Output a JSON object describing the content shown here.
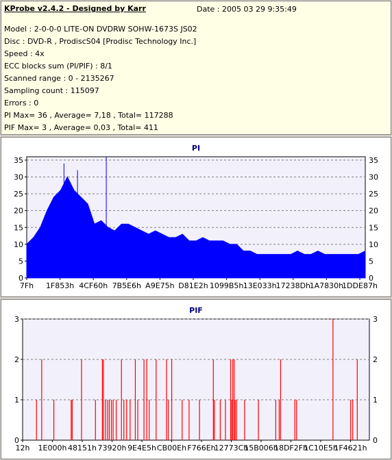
{
  "header": {
    "title": "KProbe v2.4.2 - Designed by Karr",
    "date": "Date : 2005 03 29 9:35:49",
    "lines": [
      "Model : 2-0-0-0 LITE-ON DVDRW SOHW-1673S JS02",
      "Disc : DVD-R , ProdiscS04   [Prodisc Technology Inc.]",
      "Speed : 4x",
      "ECC blocks sum (PI/PIF) : 8/1",
      "Scanned range : 0 - 2135267",
      "Sampling count : 115097",
      "Errors : 0",
      "PI Max= 36 , Average= 7,18 , Total= 117288",
      "PIF Max= 3 , Average= 0,03 , Total= 411"
    ]
  },
  "colors": {
    "pi": "#0000ff",
    "pif": "#ff0000",
    "plot_bg": "#f2f0fa",
    "title": "#000080"
  },
  "chart_data": [
    {
      "type": "area",
      "title": "PI",
      "ylim": [
        0,
        36
      ],
      "yticks": [
        0,
        5,
        10,
        15,
        20,
        25,
        30,
        35
      ],
      "xticks": [
        "7Fh",
        "1F853h",
        "4CF60h",
        "7B5E6h",
        "A9E75h",
        "D81E2h",
        "1099B5h",
        "13E033h",
        "17238Dh",
        "1A7830h",
        "1DDE87h"
      ],
      "x": [
        0,
        2,
        4,
        6,
        8,
        10,
        12,
        14,
        16,
        18,
        20,
        22,
        24,
        26,
        28,
        30,
        32,
        34,
        36,
        38,
        40,
        42,
        44,
        46,
        48,
        50,
        52,
        54,
        56,
        58,
        60,
        62,
        64,
        66,
        68,
        70,
        72,
        74,
        76,
        78,
        80,
        82,
        84,
        86,
        88,
        90,
        92,
        94,
        96,
        98,
        100
      ],
      "values": [
        10,
        12,
        15,
        20,
        24,
        26,
        30,
        26,
        24,
        22,
        16,
        17,
        15,
        14,
        16,
        16,
        15,
        14,
        13,
        14,
        13,
        12,
        12,
        13,
        11,
        11,
        12,
        11,
        11,
        11,
        10,
        10,
        8,
        8,
        7,
        7,
        7,
        7,
        7,
        7,
        8,
        7,
        7,
        8,
        7,
        7,
        7,
        7,
        7,
        7,
        8
      ],
      "peaks": [
        {
          "x": 23.5,
          "y": 36
        },
        {
          "x": 11,
          "y": 34
        },
        {
          "x": 15,
          "y": 32
        }
      ]
    },
    {
      "type": "bar",
      "title": "PIF",
      "ylim": [
        0,
        3
      ],
      "yticks": [
        0,
        1,
        2,
        3
      ],
      "xticks": [
        "12h",
        "1E000h",
        "48151h",
        "73920h",
        "9E4E5h",
        "CB00Eh",
        "F766Eh",
        "12773Ch",
        "15B006h",
        "18DF2Fh",
        "1C10E5h",
        "1F4621h"
      ],
      "bars": [
        {
          "x": 4,
          "y": 1
        },
        {
          "x": 5.5,
          "y": 2
        },
        {
          "x": 9,
          "y": 1
        },
        {
          "x": 14,
          "y": 1
        },
        {
          "x": 14.3,
          "y": 1
        },
        {
          "x": 17,
          "y": 2
        },
        {
          "x": 21,
          "y": 1
        },
        {
          "x": 23,
          "y": 2
        },
        {
          "x": 23.3,
          "y": 2
        },
        {
          "x": 23.9,
          "y": 1
        },
        {
          "x": 24.5,
          "y": 1
        },
        {
          "x": 25,
          "y": 1
        },
        {
          "x": 25.6,
          "y": 1
        },
        {
          "x": 26.1,
          "y": 1
        },
        {
          "x": 27,
          "y": 1
        },
        {
          "x": 28.5,
          "y": 2
        },
        {
          "x": 29.2,
          "y": 1
        },
        {
          "x": 30,
          "y": 1
        },
        {
          "x": 31,
          "y": 1
        },
        {
          "x": 32.5,
          "y": 2
        },
        {
          "x": 33.2,
          "y": 1
        },
        {
          "x": 35,
          "y": 2
        },
        {
          "x": 35.8,
          "y": 2
        },
        {
          "x": 36.5,
          "y": 1
        },
        {
          "x": 38.5,
          "y": 2
        },
        {
          "x": 41.5,
          "y": 2
        },
        {
          "x": 42,
          "y": 1
        },
        {
          "x": 43,
          "y": 2
        },
        {
          "x": 46,
          "y": 1
        },
        {
          "x": 48,
          "y": 1
        },
        {
          "x": 51,
          "y": 1
        },
        {
          "x": 55,
          "y": 2
        },
        {
          "x": 55.3,
          "y": 1
        },
        {
          "x": 57,
          "y": 1
        },
        {
          "x": 58.5,
          "y": 1
        },
        {
          "x": 60,
          "y": 2
        },
        {
          "x": 60.3,
          "y": 1
        },
        {
          "x": 60.6,
          "y": 2
        },
        {
          "x": 61,
          "y": 2
        },
        {
          "x": 61.3,
          "y": 1
        },
        {
          "x": 61.7,
          "y": 1
        },
        {
          "x": 64,
          "y": 1
        },
        {
          "x": 68,
          "y": 1
        },
        {
          "x": 73,
          "y": 1
        },
        {
          "x": 74,
          "y": 1
        },
        {
          "x": 74.4,
          "y": 2
        },
        {
          "x": 78.5,
          "y": 1
        },
        {
          "x": 79,
          "y": 1
        },
        {
          "x": 89.5,
          "y": 3
        },
        {
          "x": 94.6,
          "y": 1
        },
        {
          "x": 95.2,
          "y": 1
        },
        {
          "x": 96.5,
          "y": 2
        }
      ]
    }
  ]
}
